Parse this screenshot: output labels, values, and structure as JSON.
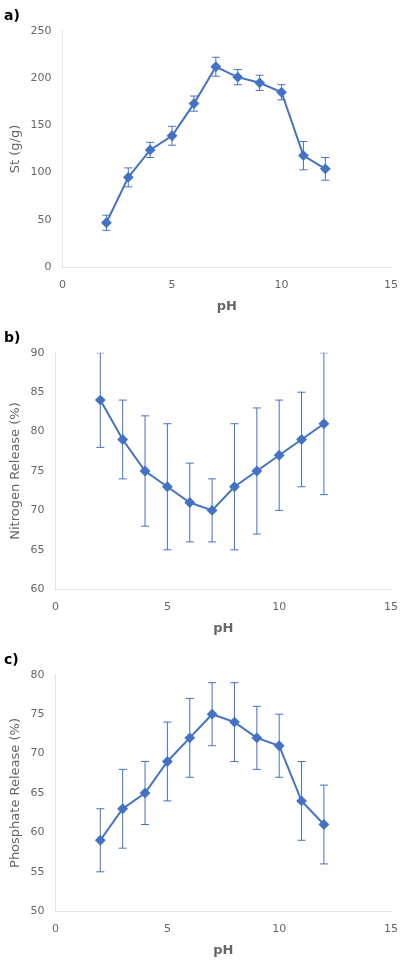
{
  "chart_data": [
    {
      "type": "line",
      "title": "a)",
      "xlabel": "pH",
      "ylabel": "St (g/g)",
      "x": [
        2,
        3,
        4,
        5,
        6,
        7,
        8,
        9,
        10,
        11,
        12
      ],
      "values": [
        47,
        95,
        124,
        139,
        173,
        212,
        201,
        195,
        185,
        118,
        104
      ],
      "yerr": [
        8,
        10,
        8,
        10,
        8,
        10,
        8,
        8,
        8,
        15,
        12
      ],
      "color": "#4472C4",
      "marker": "diamond",
      "line_style": "solid",
      "grid": false,
      "xlim": [
        0,
        15
      ],
      "xticks": [
        0,
        5,
        10,
        15
      ],
      "ylim": [
        0,
        250
      ],
      "yticks": [
        0,
        50,
        100,
        150,
        200,
        250
      ]
    },
    {
      "type": "line",
      "title": "b)",
      "xlabel": "pH",
      "ylabel": "Nitrogen Release (%)",
      "x": [
        2,
        3,
        4,
        5,
        6,
        7,
        8,
        9,
        10,
        11,
        12
      ],
      "values": [
        84,
        79,
        75,
        73,
        71,
        70,
        73,
        75,
        77,
        79,
        81
      ],
      "yerr": [
        6,
        5,
        7,
        8,
        5,
        4,
        8,
        8,
        7,
        6,
        9
      ],
      "color": "#4472C4",
      "marker": "diamond",
      "line_style": "solid",
      "grid": false,
      "xlim": [
        0,
        15
      ],
      "xticks": [
        0,
        5,
        10,
        15
      ],
      "ylim": [
        60,
        90
      ],
      "yticks": [
        60,
        65,
        70,
        75,
        80,
        85,
        90
      ]
    },
    {
      "type": "line",
      "title": "c)",
      "xlabel": "pH",
      "ylabel": "Phosphate Release (%)",
      "x": [
        2,
        3,
        4,
        5,
        6,
        7,
        8,
        9,
        10,
        11,
        12
      ],
      "values": [
        59,
        63,
        65,
        69,
        72,
        75,
        74,
        72,
        71,
        64,
        61
      ],
      "yerr": [
        4,
        5,
        4,
        5,
        5,
        4,
        5,
        4,
        4,
        5,
        5
      ],
      "color": "#4472C4",
      "marker": "diamond",
      "line_style": "solid",
      "grid": false,
      "xlim": [
        0,
        15
      ],
      "xticks": [
        0,
        5,
        10,
        15
      ],
      "ylim": [
        50,
        80
      ],
      "yticks": [
        50,
        55,
        60,
        65,
        70,
        75,
        80
      ]
    }
  ]
}
